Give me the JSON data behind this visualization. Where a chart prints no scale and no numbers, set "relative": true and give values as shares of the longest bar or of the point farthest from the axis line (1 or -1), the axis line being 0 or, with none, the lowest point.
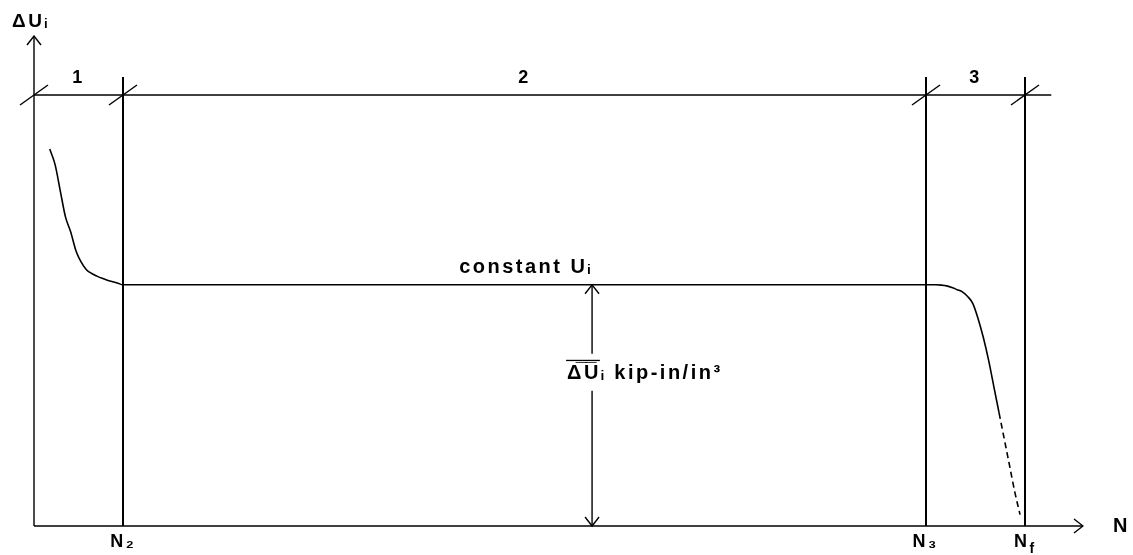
{
  "chart_data": {
    "type": "line",
    "relative": true,
    "marker": "none",
    "grid": "x",
    "xlabel": "N",
    "categories": [
      null,
      null,
      null,
      null,
      null,
      null,
      null,
      null,
      null,
      null,
      null,
      null,
      null,
      null,
      null,
      null,
      null,
      "N₂",
      null,
      null,
      null,
      null,
      null,
      null,
      null,
      null,
      null,
      null,
      null,
      null,
      null,
      null,
      null,
      null,
      null,
      null,
      null,
      null,
      null,
      null,
      null,
      null,
      null,
      null,
      null,
      null,
      null,
      null,
      null,
      null,
      null,
      null,
      null,
      null,
      null,
      null,
      null,
      null,
      null,
      null,
      null,
      null,
      null,
      null,
      null,
      null,
      null,
      null,
      null,
      null,
      null,
      null,
      null,
      null,
      null,
      null,
      null,
      null,
      null,
      null,
      null,
      null,
      null,
      null,
      null,
      null,
      null,
      null,
      null,
      null,
      null,
      null,
      null,
      null,
      null,
      null,
      null,
      null,
      null,
      null,
      null,
      null,
      null,
      null,
      null,
      null,
      null,
      null,
      null,
      null,
      null,
      null,
      null,
      null,
      null,
      null,
      null,
      null,
      null,
      null,
      null,
      null,
      null,
      null,
      null,
      null,
      null,
      null,
      null,
      null,
      null,
      null,
      null,
      null,
      null,
      null,
      null,
      null,
      null,
      null,
      null,
      null,
      null,
      null,
      null,
      null,
      null,
      null,
      null,
      null,
      null,
      null,
      null,
      null,
      null,
      null,
      null,
      null,
      null,
      null,
      null,
      null,
      null,
      null,
      null,
      null,
      null,
      null,
      null,
      null,
      "N₃",
      null,
      null,
      null,
      null,
      null,
      null,
      null,
      null,
      null,
      null,
      null,
      null,
      null,
      null,
      null,
      null,
      null,
      null,
      "N$_{f}$",
      null,
      null,
      null,
      null,
      null,
      null,
      null,
      null,
      null,
      null,
      null
    ],
    "series": [
      {
        "color": "#000000",
        "values": [
          null,
          null,
          null,
          1.0,
          0.96,
          0.89,
          0.82,
          0.78,
          0.73,
          0.7,
          0.68,
          0.67,
          0.663,
          0.657,
          0.652,
          0.648,
          0.644,
          0.64,
          0.64,
          0.64,
          0.64,
          0.64,
          0.64,
          0.64,
          0.64,
          0.64,
          0.64,
          0.64,
          0.64,
          0.64,
          0.64,
          0.64,
          0.64,
          0.64,
          0.64,
          0.64,
          0.64,
          0.64,
          0.64,
          0.64,
          0.64,
          0.64,
          0.64,
          0.64,
          0.64,
          0.64,
          0.64,
          0.64,
          0.64,
          0.64,
          0.64,
          0.64,
          0.64,
          0.64,
          0.64,
          0.64,
          0.64,
          0.64,
          0.64,
          0.64,
          0.64,
          0.64,
          0.64,
          0.64,
          0.64,
          0.64,
          0.64,
          0.64,
          0.64,
          0.64,
          0.64,
          0.64,
          0.64,
          0.64,
          0.64,
          0.64,
          0.64,
          0.64,
          0.64,
          0.64,
          0.64,
          0.64,
          0.64,
          0.64,
          0.64,
          0.64,
          0.64,
          0.64,
          0.64,
          0.64,
          0.64,
          0.64,
          0.64,
          0.64,
          0.64,
          0.64,
          0.64,
          0.64,
          0.64,
          0.64,
          0.64,
          0.64,
          0.64,
          0.64,
          0.64,
          0.64,
          0.64,
          0.64,
          0.64,
          0.64,
          0.64,
          0.64,
          0.64,
          0.64,
          0.64,
          0.64,
          0.64,
          0.64,
          0.64,
          0.64,
          0.64,
          0.64,
          0.64,
          0.64,
          0.64,
          0.64,
          0.64,
          0.64,
          0.64,
          0.64,
          0.64,
          0.64,
          0.64,
          0.64,
          0.64,
          0.64,
          0.64,
          0.64,
          0.64,
          0.64,
          0.64,
          0.64,
          0.64,
          0.64,
          0.64,
          0.64,
          0.64,
          0.64,
          0.64,
          0.64,
          0.64,
          0.64,
          0.64,
          0.64,
          0.64,
          0.64,
          0.64,
          0.64,
          0.64,
          0.64,
          0.64,
          0.64,
          0.64,
          0.64,
          0.64,
          0.64,
          0.64,
          0.64,
          0.64,
          0.64,
          0.64,
          0.64,
          0.64,
          0.639,
          0.637,
          0.633,
          0.627,
          0.621,
          0.609,
          0.59,
          0.55,
          0.5,
          0.44,
          0.37,
          0.3,
          null,
          null,
          null,
          null,
          null,
          null,
          null,
          null,
          null,
          null,
          null,
          null,
          null,
          null,
          null,
          null
        ]
      },
      {
        "color": "#000000",
        "line_style": "dashed",
        "values": [
          null,
          null,
          null,
          null,
          null,
          null,
          null,
          null,
          null,
          null,
          null,
          null,
          null,
          null,
          null,
          null,
          null,
          null,
          null,
          null,
          null,
          null,
          null,
          null,
          null,
          null,
          null,
          null,
          null,
          null,
          null,
          null,
          null,
          null,
          null,
          null,
          null,
          null,
          null,
          null,
          null,
          null,
          null,
          null,
          null,
          null,
          null,
          null,
          null,
          null,
          null,
          null,
          null,
          null,
          null,
          null,
          null,
          null,
          null,
          null,
          null,
          null,
          null,
          null,
          null,
          null,
          null,
          null,
          null,
          null,
          null,
          null,
          null,
          null,
          null,
          null,
          null,
          null,
          null,
          null,
          null,
          null,
          null,
          null,
          null,
          null,
          null,
          null,
          null,
          null,
          null,
          null,
          null,
          null,
          null,
          null,
          null,
          null,
          null,
          null,
          null,
          null,
          null,
          null,
          null,
          null,
          null,
          null,
          null,
          null,
          null,
          null,
          null,
          null,
          null,
          null,
          null,
          null,
          null,
          null,
          null,
          null,
          null,
          null,
          null,
          null,
          null,
          null,
          null,
          null,
          null,
          null,
          null,
          null,
          null,
          null,
          null,
          null,
          null,
          null,
          null,
          null,
          null,
          null,
          null,
          null,
          null,
          null,
          null,
          null,
          null,
          null,
          null,
          null,
          null,
          null,
          null,
          null,
          null,
          null,
          null,
          null,
          null,
          null,
          null,
          null,
          null,
          null,
          null,
          null,
          null,
          null,
          null,
          null,
          null,
          null,
          null,
          null,
          null,
          null,
          null,
          null,
          null,
          null,
          0.3,
          0.23,
          0.16,
          0.09,
          0.03,
          null,
          null,
          null,
          null,
          null,
          null,
          null,
          null,
          null,
          null,
          null,
          null
        ]
      }
    ],
    "annotations": [
      "ΔUᵢ",
      "1",
      "2",
      "3",
      {
        "text": "constant Uᵢ",
        "y": 0.64
      },
      "Δ̅U̅ᵢ kip-in/in³"
    ]
  }
}
